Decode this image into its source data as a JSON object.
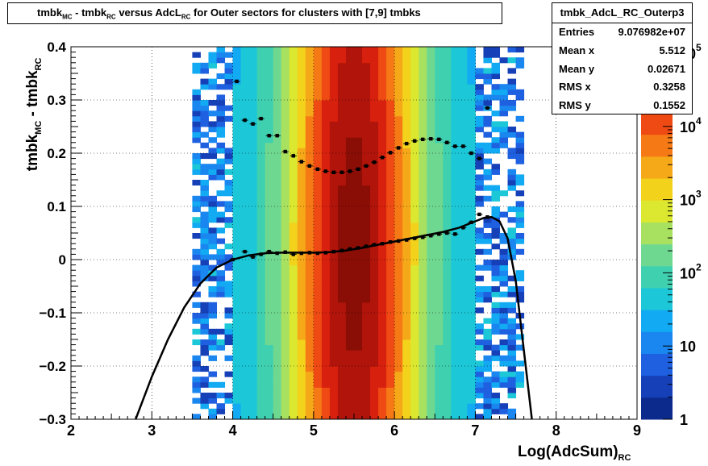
{
  "title": {
    "parts": [
      "tmbk",
      "MC",
      " - tmbk",
      "RC",
      " versus AdcL",
      "RC",
      " for Outer sectors for clusters with [7,9] tmbks"
    ]
  },
  "stats": {
    "name": "tmbk_AdcL_RC_Outerp3",
    "rows": [
      {
        "key": "Entries",
        "value": "9.076982e+07"
      },
      {
        "key": "Mean x",
        "value": "5.512"
      },
      {
        "key": "Mean y",
        "value": "0.02671"
      },
      {
        "key": "RMS x",
        "value": "0.3258"
      },
      {
        "key": "RMS y",
        "value": "0.1552"
      }
    ]
  },
  "colors": {
    "palette": [
      "#0b2a8c",
      "#1640b8",
      "#1e60e0",
      "#1a86f0",
      "#12aaf2",
      "#1cc8d8",
      "#3fd0b0",
      "#6fd890",
      "#a8e060",
      "#dce830",
      "#f3d21c",
      "#f5a818",
      "#f57a16",
      "#f04a14",
      "#d8200e",
      "#b0140a",
      "#8a0e06"
    ]
  },
  "chart_data": {
    "type": "heatmap",
    "title": "tmbk_MC - tmbk_RC versus AdcL_RC for Outer sectors for clusters with [7,9] tmbks",
    "xlabel": "Log(AdcSum)_RC",
    "ylabel": "tmbk_MC - tmbk_RC",
    "xlim": [
      2,
      9
    ],
    "ylim": [
      -0.3,
      0.4
    ],
    "x_ticks": [
      "2",
      "3",
      "4",
      "5",
      "6",
      "7",
      "8",
      "9"
    ],
    "y_ticks": [
      "−0.3",
      "−0.2",
      "−0.1",
      "0",
      "0.1",
      "0.2",
      "0.3",
      "0.4"
    ],
    "y_tick_values": [
      -0.3,
      -0.2,
      -0.1,
      0,
      0.1,
      0.2,
      0.3,
      0.4
    ],
    "z_scale": "log",
    "z_ticks": [
      "1",
      "10",
      "10",
      "10",
      "10",
      "10"
    ],
    "z_tick_exps": [
      "",
      "",
      "2",
      "3",
      "4",
      "5"
    ],
    "z_tick_values": [
      1,
      10,
      100,
      1000,
      10000,
      100000
    ],
    "grid": true,
    "mean_profile": {
      "x": [
        4.0,
        4.15,
        4.25,
        4.35,
        4.45,
        4.55,
        4.65,
        4.75,
        4.85,
        4.95,
        5.05,
        5.15,
        5.25,
        5.35,
        5.45,
        5.55,
        5.65,
        5.75,
        5.85,
        5.95,
        6.05,
        6.15,
        6.25,
        6.35,
        6.45,
        6.55,
        6.65,
        6.75,
        6.85,
        6.95,
        7.05,
        7.15
      ],
      "y": [
        0.0,
        0.015,
        0.005,
        0.01,
        0.015,
        0.012,
        0.014,
        0.01,
        0.012,
        0.013,
        0.012,
        0.013,
        0.015,
        0.017,
        0.02,
        0.022,
        0.025,
        0.028,
        0.03,
        0.033,
        0.035,
        0.037,
        0.04,
        0.042,
        0.045,
        0.048,
        0.05,
        0.048,
        0.06,
        0.07,
        0.085,
        0.08
      ]
    },
    "rms_profile": {
      "x": [
        4.05,
        4.15,
        4.25,
        4.35,
        4.45,
        4.55,
        4.65,
        4.75,
        4.85,
        4.95,
        5.05,
        5.15,
        5.25,
        5.35,
        5.45,
        5.55,
        5.65,
        5.75,
        5.85,
        5.95,
        6.05,
        6.15,
        6.25,
        6.35,
        6.45,
        6.55,
        6.65,
        6.75,
        6.85,
        6.95,
        7.05,
        7.15
      ],
      "y": [
        0.335,
        0.262,
        0.255,
        0.265,
        0.233,
        0.233,
        0.203,
        0.195,
        0.184,
        0.176,
        0.17,
        0.166,
        0.164,
        0.164,
        0.166,
        0.17,
        0.176,
        0.183,
        0.192,
        0.201,
        0.21,
        0.218,
        0.223,
        0.226,
        0.227,
        0.226,
        0.22,
        0.213,
        0.213,
        0.2,
        0.19,
        0.285
      ]
    },
    "fit_curve": {
      "x": [
        2.8,
        3.0,
        3.2,
        3.4,
        3.6,
        3.8,
        4.0,
        4.2,
        4.4,
        4.6,
        4.8,
        5.0,
        5.2,
        5.4,
        5.6,
        5.8,
        6.0,
        6.2,
        6.4,
        6.6,
        6.8,
        7.0,
        7.1,
        7.2,
        7.3,
        7.4,
        7.5,
        7.6,
        7.7
      ],
      "y": [
        -0.3,
        -0.22,
        -0.15,
        -0.09,
        -0.045,
        -0.015,
        0.0,
        0.008,
        0.012,
        0.013,
        0.013,
        0.013,
        0.014,
        0.017,
        0.022,
        0.028,
        0.034,
        0.04,
        0.046,
        0.052,
        0.06,
        0.072,
        0.078,
        0.08,
        0.072,
        0.04,
        -0.04,
        -0.17,
        -0.3
      ]
    }
  }
}
